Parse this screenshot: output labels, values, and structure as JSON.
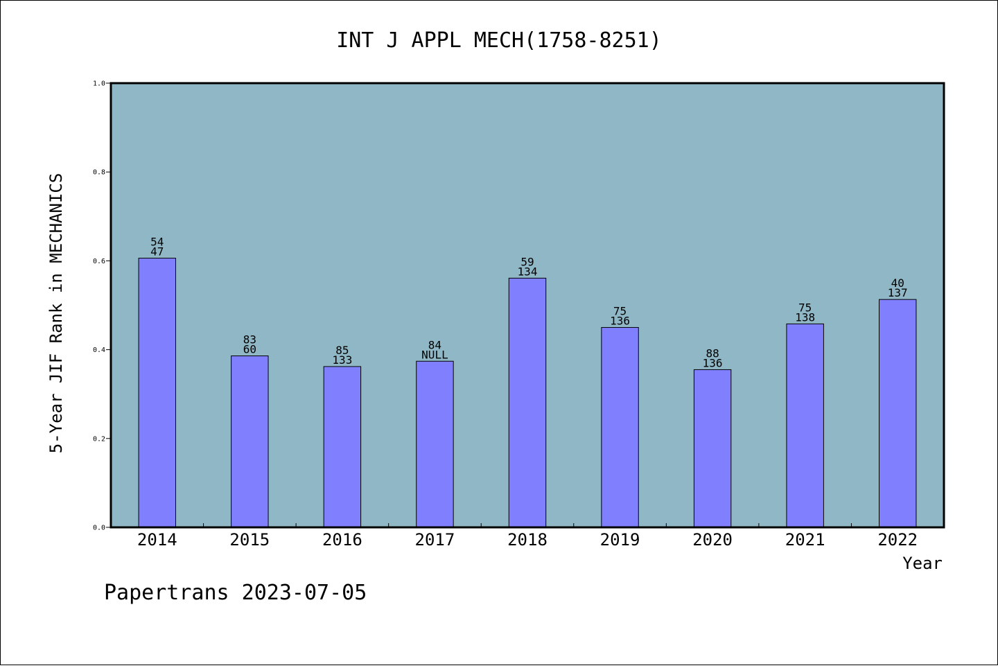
{
  "chart_data": {
    "type": "bar",
    "title": "INT J APPL MECH(1758-8251)",
    "xlabel": "Year",
    "ylabel": "5-Year JIF Rank in MECHANICS",
    "ylim": [
      0,
      1.0
    ],
    "yticks": [
      "0.0",
      "0.2",
      "0.4",
      "0.6",
      "0.8",
      "1.0"
    ],
    "grid": false,
    "legend": "none",
    "categories": [
      "2014",
      "2015",
      "2016",
      "2017",
      "2018",
      "2019",
      "2020",
      "2021",
      "2022"
    ],
    "values": [
      0.606,
      0.386,
      0.362,
      0.374,
      0.561,
      0.45,
      0.355,
      0.458,
      0.513
    ],
    "labels_top": [
      "54",
      "83",
      "85",
      "84",
      "59",
      "75",
      "88",
      "75",
      "40"
    ],
    "labels_bottom": [
      "47",
      "60",
      "133",
      "NULL",
      "134",
      "136",
      "136",
      "138",
      "137"
    ],
    "colors": {
      "plot_background": "#8fb7c5",
      "bar": "#8080ff",
      "bar_edge": "#000000"
    }
  },
  "footer": "Papertrans 2023-07-05"
}
